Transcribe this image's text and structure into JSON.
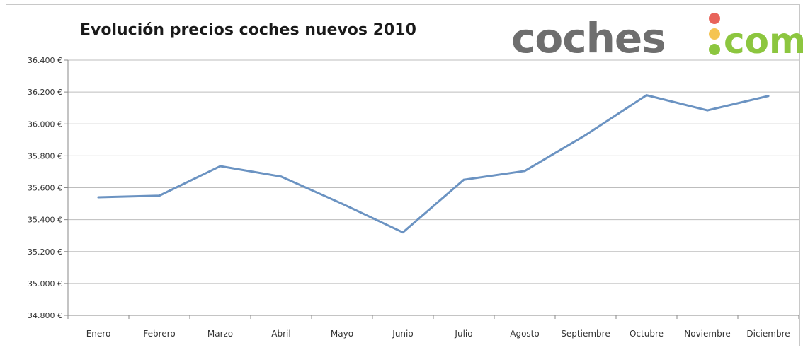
{
  "chart_data": {
    "type": "line",
    "title": "Evolución precios coches nuevos 2010",
    "categories": [
      "Enero",
      "Febrero",
      "Marzo",
      "Abril",
      "Mayo",
      "Junio",
      "Julio",
      "Agosto",
      "Septiembre",
      "Octubre",
      "Noviembre",
      "Diciembre"
    ],
    "series": [
      {
        "values": [
          35540,
          35550,
          35735,
          35670,
          35500,
          35320,
          35650,
          35705,
          35930,
          36180,
          36085,
          36175
        ],
        "color": "#6b93c2"
      }
    ],
    "y_ticks": [
      "36.400 €",
      "36.200 €",
      "36.000 €",
      "35.800 €",
      "35.600 €",
      "35.400 €",
      "35.200 €",
      "35.000 €",
      "34.800 €"
    ],
    "ylim": [
      34800,
      36400
    ],
    "ystep": 200,
    "grid": true,
    "legend": "none"
  },
  "logo": {
    "main_text": "coches",
    "tld_text": "com",
    "main_color": "#6e6e6e",
    "tld_color": "#8cc63f",
    "dot_colors": [
      "#e8645b",
      "#f5c451",
      "#8cc63f"
    ]
  }
}
